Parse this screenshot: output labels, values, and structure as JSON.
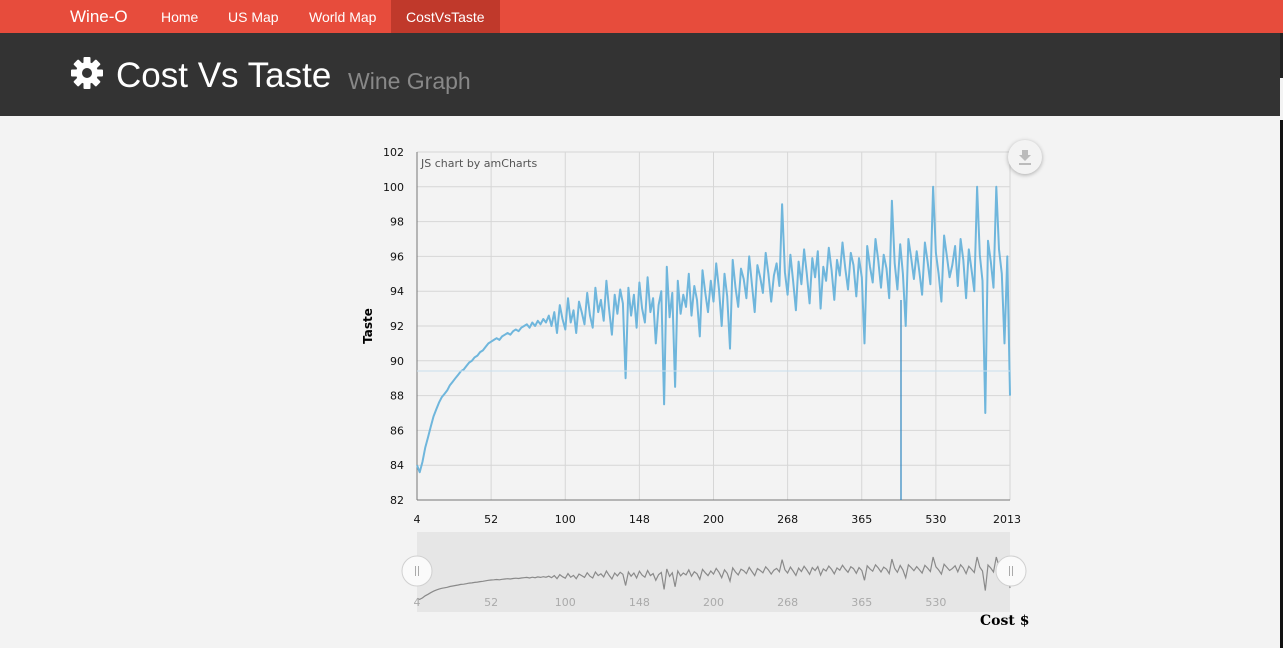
{
  "nav": {
    "brand": "Wine-O",
    "items": [
      {
        "label": "Home"
      },
      {
        "label": "US Map"
      },
      {
        "label": "World Map"
      },
      {
        "label": "CostVsTaste"
      }
    ]
  },
  "header": {
    "icon": "gear-icon",
    "title": "Cost Vs Taste",
    "subtitle": "Wine Graph"
  },
  "chart_data": {
    "type": "line",
    "credit": "JS chart by amCharts",
    "ylabel": "Taste",
    "xlabel": "Cost $",
    "ylim": [
      82,
      102
    ],
    "y_ticks": [
      82,
      84,
      86,
      88,
      90,
      92,
      94,
      96,
      98,
      100,
      102
    ],
    "x_tick_labels": [
      "4",
      "52",
      "100",
      "148",
      "200",
      "268",
      "365",
      "530",
      "2013"
    ],
    "scrollbar_tick_labels": [
      "4",
      "52",
      "100",
      "148",
      "200",
      "268",
      "365",
      "530"
    ],
    "grid": true,
    "line_color": "#6fb6dc",
    "series": [
      {
        "values": [
          84.0,
          83.6,
          84.2,
          85.0,
          85.6,
          86.2,
          86.8,
          87.2,
          87.6,
          87.9,
          88.1,
          88.3,
          88.6,
          88.8,
          89.0,
          89.2,
          89.4,
          89.5,
          89.7,
          89.9,
          90.0,
          90.2,
          90.3,
          90.5,
          90.6,
          90.8,
          91.0,
          91.1,
          91.2,
          91.3,
          91.2,
          91.4,
          91.5,
          91.6,
          91.5,
          91.7,
          91.8,
          91.7,
          91.9,
          92.0,
          92.1,
          91.9,
          92.2,
          92.0,
          92.3,
          92.1,
          92.4,
          92.2,
          92.6,
          92.0,
          92.8,
          91.6,
          93.2,
          92.4,
          91.8,
          93.6,
          92.2,
          92.9,
          91.6,
          93.4,
          92.8,
          92.1,
          93.9,
          92.6,
          91.9,
          94.2,
          92.8,
          93.5,
          92.3,
          94.6,
          92.9,
          91.5,
          93.8,
          92.7,
          94.1,
          93.3,
          89.0,
          94.2,
          92.6,
          93.8,
          91.9,
          94.5,
          93.0,
          92.2,
          94.8,
          92.8,
          93.6,
          91.0,
          93.2,
          94.0,
          87.5,
          95.4,
          92.5,
          93.9,
          88.5,
          94.6,
          92.7,
          93.8,
          93.1,
          95.0,
          92.6,
          94.3,
          93.5,
          91.4,
          95.2,
          93.9,
          92.8,
          94.6,
          93.4,
          95.6,
          94.1,
          92.0,
          95.0,
          93.7,
          90.7,
          95.8,
          94.2,
          93.1,
          95.3,
          94.7,
          93.6,
          96.0,
          94.4,
          92.8,
          95.5,
          94.8,
          93.9,
          96.2,
          95.0,
          93.4,
          94.9,
          95.6,
          94.3,
          99.0,
          95.1,
          93.8,
          96.1,
          94.6,
          92.9,
          95.7,
          94.4,
          96.4,
          95.0,
          93.3,
          95.9,
          94.8,
          96.3,
          93.0,
          95.4,
          94.6,
          96.5,
          95.2,
          93.5,
          95.8,
          94.9,
          96.8,
          95.3,
          94.1,
          96.2,
          95.5,
          93.7,
          95.9,
          94.8,
          91.0,
          96.6,
          95.4,
          94.5,
          97.0,
          95.8,
          94.2,
          96.1,
          95.3,
          93.6,
          99.2,
          95.6,
          94.1,
          96.7,
          95.0,
          92.0,
          97.0,
          95.9,
          94.7,
          96.3,
          95.1,
          93.8,
          96.8,
          95.7,
          94.4,
          100.0,
          96.2,
          95.0,
          93.4,
          97.2,
          96.0,
          94.8,
          95.5,
          96.6,
          94.3,
          97.0,
          95.8,
          93.6,
          96.4,
          95.2,
          94.0,
          100.0,
          96.1,
          94.6,
          87.0,
          96.9,
          95.7,
          94.2,
          100.0,
          96.4,
          95.0,
          91.0,
          96.0,
          88.0
        ]
      }
    ]
  }
}
